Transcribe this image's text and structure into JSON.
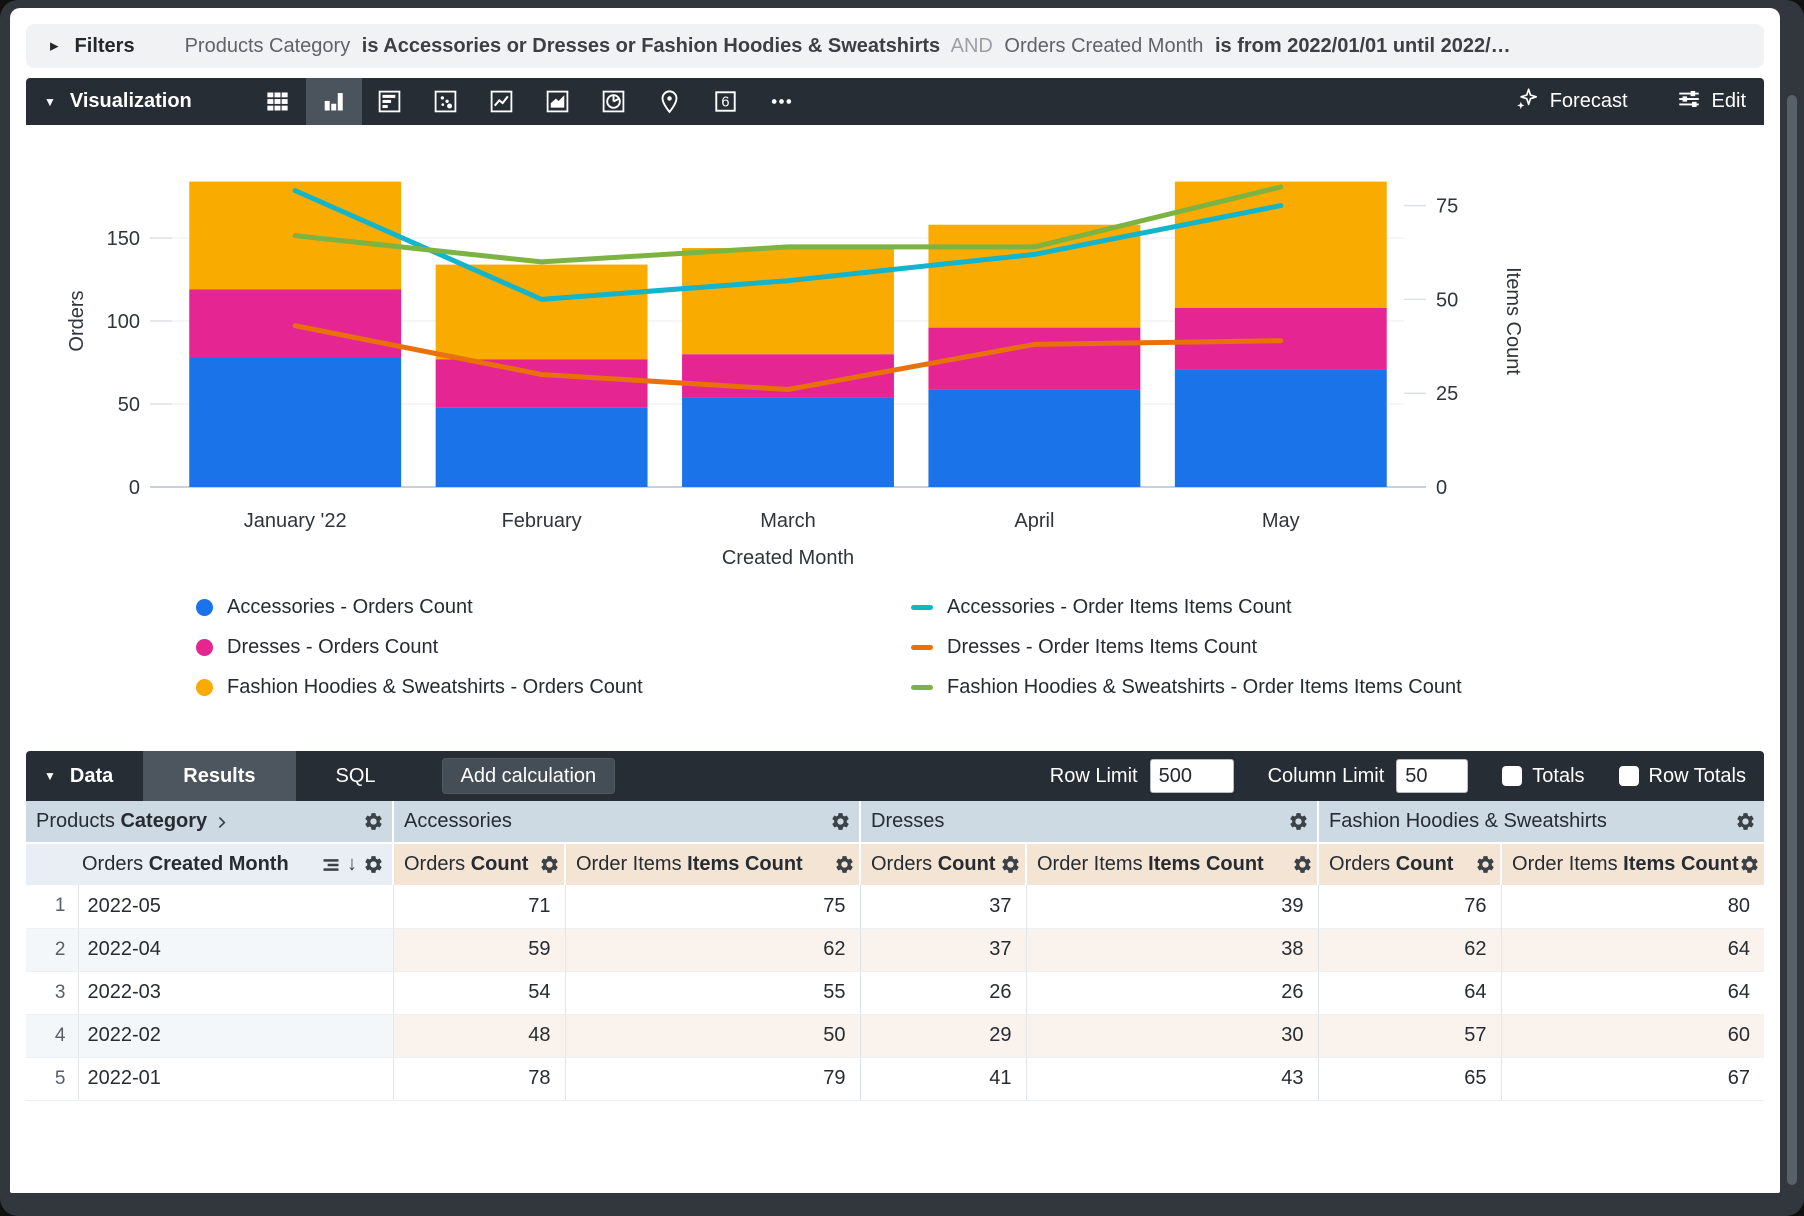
{
  "filters": {
    "label": "Filters",
    "parts": [
      {
        "text": "Products Category",
        "style": "normal"
      },
      {
        "text": "is Accessories or Dresses or Fashion Hoodies & Sweatshirts",
        "style": "bold"
      },
      {
        "text": "AND",
        "style": "muted"
      },
      {
        "text": "Orders Created Month",
        "style": "normal"
      },
      {
        "text": "is from 2022/01/01 until 2022/…",
        "style": "bold"
      }
    ]
  },
  "viz_toolbar": {
    "label": "Visualization",
    "icons": [
      "table",
      "column",
      "bar",
      "scatter",
      "line",
      "area",
      "pie",
      "map",
      "single-value",
      "more"
    ],
    "selected_icon": "column",
    "forecast_label": "Forecast",
    "edit_label": "Edit"
  },
  "chart_data": {
    "type": "bar",
    "subtype": "stacked-bars-with-dual-axis-lines",
    "categories": [
      "January '22",
      "February",
      "March",
      "April",
      "May"
    ],
    "bar_series": [
      {
        "name": "Accessories - Orders Count",
        "color": "#1A73E8",
        "values": [
          78,
          48,
          54,
          59,
          71
        ]
      },
      {
        "name": "Dresses - Orders Count",
        "color": "#E52592",
        "values": [
          41,
          29,
          26,
          37,
          37
        ]
      },
      {
        "name": "Fashion Hoodies & Sweatshirts - Orders Count",
        "color": "#F9AB00",
        "values": [
          65,
          57,
          64,
          62,
          76
        ]
      }
    ],
    "line_series": [
      {
        "name": "Accessories - Order Items Items Count",
        "color": "#12B5CB",
        "values": [
          79,
          50,
          55,
          62,
          75
        ]
      },
      {
        "name": "Dresses - Order Items Items Count",
        "color": "#E8710A",
        "values": [
          43,
          30,
          26,
          38,
          39
        ]
      },
      {
        "name": "Fashion Hoodies & Sweatshirts - Order Items Items Count",
        "color": "#7CB342",
        "values": [
          67,
          60,
          64,
          64,
          80
        ]
      }
    ],
    "xlabel": "Created Month",
    "ylabel_left": "Orders",
    "ylabel_right": "Items Count",
    "left_ticks": [
      0,
      50,
      100,
      150
    ],
    "right_ticks": [
      0,
      25,
      50,
      75
    ],
    "left_max": 200,
    "right_max": 88.5,
    "grid": true,
    "legend_position": "bottom"
  },
  "data_bar": {
    "label": "Data",
    "tabs": [
      {
        "label": "Results",
        "active": true
      },
      {
        "label": "SQL",
        "active": false
      }
    ],
    "add_calculation_label": "Add calculation",
    "row_limit_label": "Row Limit",
    "row_limit_value": "500",
    "column_limit_label": "Column Limit",
    "column_limit_value": "50",
    "totals_label": "Totals",
    "row_totals_label": "Row Totals",
    "totals_checked": false,
    "row_totals_checked": false
  },
  "table": {
    "dimension_group": {
      "prefix": "Products",
      "bold": "Category"
    },
    "measure_groups": [
      "Accessories",
      "Dresses",
      "Fashion Hoodies & Sweatshirts"
    ],
    "dimension_header": {
      "prefix": "Orders",
      "bold": "Created Month"
    },
    "measure_headers": [
      {
        "prefix": "Orders",
        "bold": "Count"
      },
      {
        "prefix": "Order Items",
        "bold": "Items Count"
      }
    ],
    "rows": [
      {
        "num": "1",
        "month": "2022-05",
        "values": [
          71,
          75,
          37,
          39,
          76,
          80
        ]
      },
      {
        "num": "2",
        "month": "2022-04",
        "values": [
          59,
          62,
          37,
          38,
          62,
          64
        ]
      },
      {
        "num": "3",
        "month": "2022-03",
        "values": [
          54,
          55,
          26,
          26,
          64,
          64
        ]
      },
      {
        "num": "4",
        "month": "2022-02",
        "values": [
          48,
          50,
          29,
          30,
          57,
          60
        ]
      },
      {
        "num": "5",
        "month": "2022-01",
        "values": [
          78,
          79,
          41,
          43,
          65,
          67
        ]
      }
    ]
  }
}
